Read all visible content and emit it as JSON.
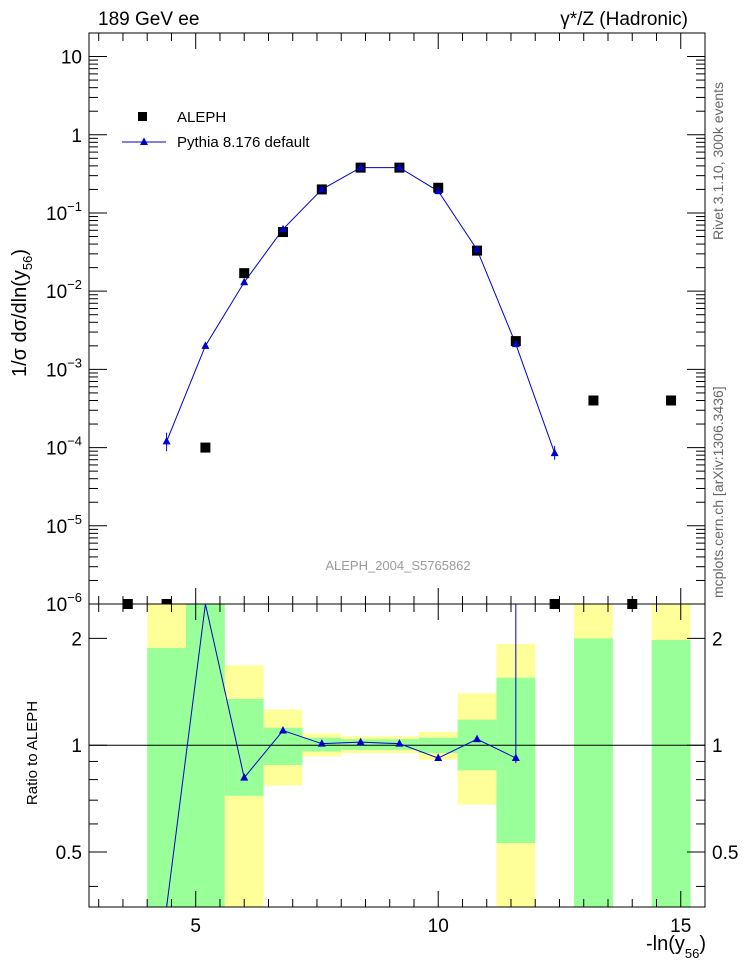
{
  "header": {
    "energy_label": "189 GeV ee",
    "process_label": "γ*/Z (Hadronic)"
  },
  "side": {
    "rivet_label": "Rivet 3.1.10,  300k events",
    "source_label": "mcplots.cern.ch [arXiv:1306.3436]"
  },
  "colors": {
    "data_marker": "#000000",
    "mc_line": "#0000cc",
    "band_inner": "#99ff99",
    "band_outer": "#ffff99",
    "reference_line": "#000000"
  },
  "chart_data": [
    {
      "id": "main",
      "type": "scatter",
      "title": "",
      "watermark": "ALEPH_2004_S5765862",
      "xlabel": "",
      "ylabel_pre": "1/σ  dσ/dln(y",
      "ylabel_sub": "56",
      "ylabel_post": ")",
      "yscale": "log",
      "xlim": [
        2.8,
        15.5
      ],
      "ylim": [
        1e-06,
        20
      ],
      "y_major_ticks": [
        {
          "value": 10,
          "mant": "10",
          "exp": ""
        },
        {
          "value": 1,
          "mant": "1",
          "exp": ""
        },
        {
          "value": 0.1,
          "mant": "10",
          "exp": "−1"
        },
        {
          "value": 0.01,
          "mant": "10",
          "exp": "−2"
        },
        {
          "value": 0.001,
          "mant": "10",
          "exp": "−3"
        },
        {
          "value": 0.0001,
          "mant": "10",
          "exp": "−4"
        },
        {
          "value": 1e-05,
          "mant": "10",
          "exp": "−5"
        },
        {
          "value": 1e-06,
          "mant": "10",
          "exp": "−6"
        }
      ],
      "legend": [
        {
          "label": "ALEPH",
          "marker": "square"
        },
        {
          "label": "Pythia 8.176 default",
          "marker": "triangle-line"
        }
      ],
      "series": [
        {
          "name": "ALEPH",
          "x": [
            3.6,
            4.4,
            5.2,
            6.0,
            6.8,
            7.6,
            8.4,
            9.2,
            10.0,
            10.8,
            11.6,
            12.4,
            13.2,
            14.0,
            14.8
          ],
          "y": [
            1e-06,
            1e-06,
            0.0001,
            0.017,
            0.057,
            0.2,
            0.38,
            0.38,
            0.21,
            0.033,
            0.0023,
            1e-06,
            0.0004,
            1e-06,
            0.0004
          ]
        },
        {
          "name": "Pythia 8.176 default",
          "x": [
            4.4,
            5.2,
            6.0,
            6.8,
            7.6,
            8.4,
            9.2,
            10.0,
            10.8,
            11.6,
            12.4
          ],
          "y": [
            0.00012,
            0.002,
            0.013,
            0.062,
            0.2,
            0.38,
            0.38,
            0.19,
            0.034,
            0.0021,
            8.5e-05
          ],
          "y_err_lo": [
            9e-05,
            0.0019,
            0.0125,
            0.06,
            0.197,
            0.376,
            0.376,
            0.187,
            0.0335,
            0.00195,
            7e-05
          ],
          "y_err_hi": [
            0.000155,
            0.0021,
            0.0135,
            0.064,
            0.203,
            0.384,
            0.384,
            0.193,
            0.0345,
            0.00225,
            0.000105
          ]
        }
      ]
    },
    {
      "id": "ratio",
      "type": "line",
      "ylabel": "Ratio to ALEPH",
      "xlabel_pre": "-ln(y",
      "xlabel_sub": "56",
      "xlabel_post": ")",
      "yscale": "log",
      "xlim": [
        2.8,
        15.5
      ],
      "ylim": [
        0.35,
        2.5
      ],
      "x_ticks": [
        5,
        10,
        15
      ],
      "y_ticks": [
        0.5,
        1,
        2
      ],
      "reference": 1,
      "bands": [
        {
          "x0": 4.0,
          "x1": 4.8,
          "inner": [
            0.1,
            1.88
          ],
          "outer": [
            0.1,
            2.5
          ]
        },
        {
          "x0": 4.8,
          "x1": 5.6,
          "inner": [
            0.1,
            2.5
          ],
          "outer": [
            0.1,
            2.5
          ]
        },
        {
          "x0": 5.6,
          "x1": 6.4,
          "inner": [
            0.72,
            1.35
          ],
          "outer": [
            0.3,
            1.68
          ]
        },
        {
          "x0": 6.4,
          "x1": 7.2,
          "inner": [
            0.88,
            1.12
          ],
          "outer": [
            0.77,
            1.26
          ]
        },
        {
          "x0": 7.2,
          "x1": 8.0,
          "inner": [
            0.96,
            1.05
          ],
          "outer": [
            0.93,
            1.08
          ]
        },
        {
          "x0": 8.0,
          "x1": 8.8,
          "inner": [
            0.97,
            1.04
          ],
          "outer": [
            0.95,
            1.06
          ]
        },
        {
          "x0": 8.8,
          "x1": 9.6,
          "inner": [
            0.97,
            1.04
          ],
          "outer": [
            0.95,
            1.06
          ]
        },
        {
          "x0": 9.6,
          "x1": 10.4,
          "inner": [
            0.95,
            1.05
          ],
          "outer": [
            0.91,
            1.09
          ]
        },
        {
          "x0": 10.4,
          "x1": 11.2,
          "inner": [
            0.85,
            1.18
          ],
          "outer": [
            0.68,
            1.4
          ]
        },
        {
          "x0": 11.2,
          "x1": 12.0,
          "inner": [
            0.53,
            1.55
          ],
          "outer": [
            0.1,
            1.93
          ]
        },
        {
          "x0": 12.8,
          "x1": 13.6,
          "inner": [
            0.1,
            2.0
          ],
          "outer": [
            0.1,
            2.5
          ]
        },
        {
          "x0": 14.4,
          "x1": 15.2,
          "inner": [
            0.1,
            1.98
          ],
          "outer": [
            0.1,
            2.5
          ]
        }
      ],
      "series": [
        {
          "name": "Pythia 8.176 default / ALEPH",
          "x": [
            4.4,
            5.2,
            6.0,
            6.8,
            7.6,
            8.4,
            9.2,
            10.0,
            10.8,
            11.6
          ],
          "y": [
            0.2,
            5.0,
            0.81,
            1.1,
            1.01,
            1.02,
            1.01,
            0.92,
            1.04,
            0.92
          ],
          "y_err_lo": [
            0.2,
            5.0,
            0.81,
            1.1,
            1.01,
            1.02,
            1.01,
            0.92,
            1.04,
            0.89
          ],
          "y_err_hi": [
            0.2,
            5.0,
            0.81,
            1.1,
            1.01,
            1.02,
            1.01,
            0.92,
            1.04,
            2.6
          ]
        }
      ]
    }
  ]
}
